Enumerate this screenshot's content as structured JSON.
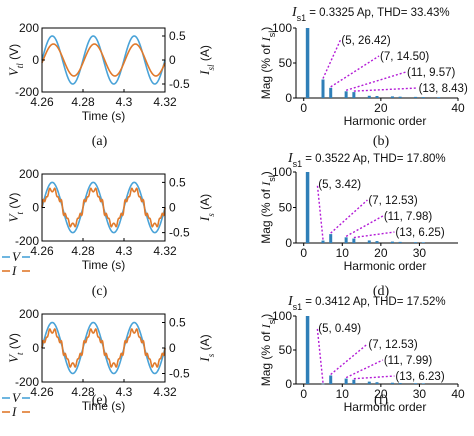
{
  "colors": {
    "voltage": "#4aa3d8",
    "current": "#e07a2c",
    "bars": "#2f7fb8",
    "leader": "#b31ad6"
  },
  "chart_data": [
    {
      "type": "line",
      "panel": "a",
      "caption": "(a)",
      "xlabel": "Time (s)",
      "ylabel_left_main": "V",
      "ylabel_left_sub": "tl",
      "ylabel_left_unit": "(V)",
      "ylabel_right_main": "I",
      "ylabel_right_sub": "sl",
      "ylabel_right_unit": "(A)",
      "xlim": [
        4.26,
        4.32
      ],
      "ylim_left": [
        -200,
        200
      ],
      "ylim_right": [
        -0.667,
        0.667
      ],
      "xticks": [
        "4.26",
        "4.28",
        "4.3",
        "4.32"
      ],
      "yticks_left": [
        "200",
        "0",
        "-200"
      ],
      "yticks_right": [
        "0.5",
        "0",
        "-0.5"
      ],
      "legend": [],
      "series": [
        {
          "key": "voltage",
          "axis": "left",
          "amplitude": 150,
          "frequency_hz": 50,
          "phase_deg": 0,
          "harmonics": []
        },
        {
          "key": "current",
          "axis": "right",
          "amplitude": 0.333,
          "frequency_hz": 50,
          "phase_deg": -10,
          "harmonics": []
        }
      ]
    },
    {
      "type": "bar",
      "panel": "b",
      "caption": "(b)",
      "header_main": "I",
      "header_sub": "s1",
      "header_value": "= 0.3325 Ap, THD= 33.43%",
      "ylabel_prefix": "Mag (% of",
      "ylabel_main": "I",
      "ylabel_sub": "sl",
      "ylabel_suffix": ")",
      "xlabel": "Harmonic order",
      "xlim": [
        -2,
        40
      ],
      "ylim": [
        0,
        100
      ],
      "xticks": [
        "0",
        "20",
        "40"
      ],
      "yticks": [
        "0",
        "50",
        "100"
      ],
      "x": [
        1,
        5,
        7,
        11,
        13,
        17,
        19,
        23,
        25,
        29,
        31,
        35
      ],
      "values": [
        100,
        26.42,
        14.5,
        9.57,
        8.43,
        3.2,
        2.8,
        2.3,
        1.9,
        1.6,
        1.3,
        1.1
      ],
      "annotations": [
        {
          "h": 5,
          "text": "(5, 26.42)",
          "anchor_order": 9
        },
        {
          "h": 7,
          "text": "(7, 14.50)",
          "anchor_order": 19
        },
        {
          "h": 11,
          "text": "(11, 9.57)",
          "anchor_order": 26
        },
        {
          "h": 13,
          "text": "(13, 8.43)",
          "anchor_order": 29
        }
      ]
    },
    {
      "type": "line",
      "panel": "c",
      "caption": "(c)",
      "xlabel": "Time (s)",
      "ylabel_left_main": "V",
      "ylabel_left_sub": "t",
      "ylabel_left_unit": "(V)",
      "ylabel_right_main": "I",
      "ylabel_right_sub": "s",
      "ylabel_right_unit": "(A)",
      "xlim": [
        4.26,
        4.32
      ],
      "ylim_left": [
        -200,
        200
      ],
      "ylim_right": [
        -0.667,
        0.667
      ],
      "xticks": [
        "4.26",
        "4.28",
        "4.3",
        "4.32"
      ],
      "yticks_left": [
        "200",
        "0",
        "-200"
      ],
      "yticks_right": [
        "0.5",
        "0",
        "-0.5"
      ],
      "legend": [
        {
          "key": "voltage",
          "label": "V"
        },
        {
          "key": "current",
          "label": "I"
        }
      ],
      "series": [
        {
          "key": "voltage",
          "axis": "left",
          "amplitude": 150,
          "frequency_hz": 50,
          "phase_deg": 0,
          "harmonics": []
        },
        {
          "key": "current",
          "axis": "right",
          "amplitude": 0.352,
          "frequency_hz": 50,
          "phase_deg": 0,
          "harmonics": [
            {
              "order": 5,
              "rel": 0.0342
            },
            {
              "order": 7,
              "rel": 0.1253
            },
            {
              "order": 11,
              "rel": 0.0798
            },
            {
              "order": 13,
              "rel": 0.0625
            }
          ]
        }
      ]
    },
    {
      "type": "bar",
      "panel": "d",
      "caption": "(d)",
      "header_main": "I",
      "header_sub": "s1",
      "header_value": "= 0.3522 Ap, THD= 17.80%",
      "ylabel_prefix": "Mag (% of",
      "ylabel_main": "I",
      "ylabel_sub": "sl",
      "ylabel_suffix": ")",
      "xlabel": "Harmonic order",
      "xlim": [
        -2,
        40
      ],
      "ylim": [
        0,
        100
      ],
      "xticks": [
        "0",
        "10",
        "20",
        "30"
      ],
      "yticks": [
        "0",
        "50",
        "100"
      ],
      "x": [
        1,
        5,
        7,
        11,
        13,
        17,
        19,
        23,
        25,
        29,
        31
      ],
      "values": [
        100,
        3.42,
        12.53,
        7.98,
        6.25,
        3.6,
        2.7,
        2.0,
        1.6,
        1.2,
        1.0
      ],
      "annotations": [
        {
          "h": 5,
          "text": "(5, 3.42)",
          "anchor_order": 3
        },
        {
          "h": 7,
          "text": "(7, 12.53)",
          "anchor_order": 16
        },
        {
          "h": 11,
          "text": "(11, 7.98)",
          "anchor_order": 20
        },
        {
          "h": 13,
          "text": "(13, 6.25)",
          "anchor_order": 23
        }
      ]
    },
    {
      "type": "line",
      "panel": "e",
      "caption": "(e)",
      "xlabel": "Time (s)",
      "ylabel_left_main": "V",
      "ylabel_left_sub": "t",
      "ylabel_left_unit": "(V)",
      "ylabel_right_main": "I",
      "ylabel_right_sub": "s",
      "ylabel_right_unit": "(A)",
      "xlim": [
        4.26,
        4.32
      ],
      "ylim_left": [
        -200,
        200
      ],
      "ylim_right": [
        -0.667,
        0.667
      ],
      "xticks": [
        "4.26",
        "4.28",
        "4.3",
        "4.32"
      ],
      "yticks_left": [
        "200",
        "0",
        "-200"
      ],
      "yticks_right": [
        "0.5",
        "0",
        "-0.5"
      ],
      "legend": [
        {
          "key": "voltage",
          "label": "V"
        },
        {
          "key": "current",
          "label": "I"
        }
      ],
      "series": [
        {
          "key": "voltage",
          "axis": "left",
          "amplitude": 150,
          "frequency_hz": 50,
          "phase_deg": 0,
          "harmonics": []
        },
        {
          "key": "current",
          "axis": "right",
          "amplitude": 0.341,
          "frequency_hz": 50,
          "phase_deg": 0,
          "harmonics": [
            {
              "order": 5,
              "rel": 0.0049
            },
            {
              "order": 7,
              "rel": 0.1253
            },
            {
              "order": 11,
              "rel": 0.0799
            },
            {
              "order": 13,
              "rel": 0.0623
            }
          ]
        }
      ]
    },
    {
      "type": "bar",
      "panel": "f",
      "caption": "(f)",
      "header_main": "I",
      "header_sub": "s1",
      "header_value": "= 0.3412 Ap, THD= 17.52%",
      "ylabel_prefix": "Mag (% of",
      "ylabel_main": "I",
      "ylabel_sub": "sl",
      "ylabel_suffix": ")",
      "xlabel": "Harmonic order",
      "xlim": [
        -2,
        40
      ],
      "ylim": [
        0,
        100
      ],
      "xticks": [
        "0",
        "10",
        "20",
        "30",
        "40"
      ],
      "yticks": [
        "0",
        "50",
        "100"
      ],
      "x": [
        1,
        5,
        7,
        11,
        13,
        17,
        19,
        23,
        25,
        29,
        31
      ],
      "values": [
        100,
        0.49,
        12.53,
        7.99,
        6.23,
        3.5,
        2.6,
        1.9,
        1.5,
        1.2,
        1.0
      ],
      "annotations": [
        {
          "h": 5,
          "text": "(5, 0.49)",
          "anchor_order": 3
        },
        {
          "h": 7,
          "text": "(7, 12.53)",
          "anchor_order": 16
        },
        {
          "h": 11,
          "text": "(11, 7.99)",
          "anchor_order": 20
        },
        {
          "h": 13,
          "text": "(13, 6.23)",
          "anchor_order": 23
        }
      ]
    }
  ]
}
